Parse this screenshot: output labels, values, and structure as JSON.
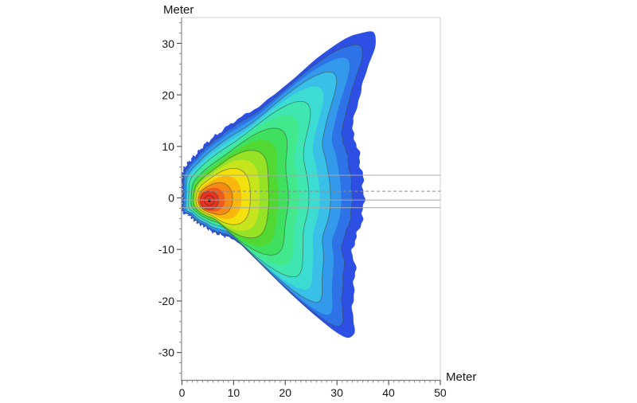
{
  "figure": {
    "background": "#ffffff",
    "description": "Filled rainbow contour map of a directional field (noise/level footprint) around a source point, fan/butterfly shaped, opening toward +x"
  },
  "axes": {
    "x": {
      "title": "Meter",
      "tick_labels": [
        "0",
        "10",
        "20",
        "30",
        "40",
        "50"
      ],
      "range": [
        0,
        50
      ],
      "major_step": 10,
      "minor_step": 1
    },
    "y": {
      "title": "Meter",
      "tick_labels": [
        "30",
        "20",
        "10",
        "0",
        "-10",
        "-20",
        "-30"
      ],
      "range": [
        -35,
        35
      ],
      "major_step": 10,
      "minor_step": 2
    }
  },
  "reference_lines": [
    {
      "y": 4.4,
      "style": "solid",
      "color": "#a8a8a8"
    },
    {
      "y": 1.3,
      "style": "dashed",
      "color": "#8c8c8c"
    },
    {
      "y": -0.4,
      "style": "solid",
      "color": "#a8a8a8"
    },
    {
      "y": -1.9,
      "style": "solid",
      "color": "#a8a8a8"
    }
  ],
  "chart_data": {
    "type": "heatmap",
    "subtype": "filled-contour",
    "title": "",
    "xlabel": "Meter",
    "ylabel": "Meter",
    "xlim": [
      0,
      50
    ],
    "ylim": [
      -35,
      35
    ],
    "grid": false,
    "legend": false,
    "x_major_ticks": [
      0,
      10,
      20,
      30,
      40,
      50
    ],
    "y_major_ticks": [
      -30,
      -20,
      -10,
      0,
      10,
      20,
      30
    ],
    "source_point": {
      "x": 5.3,
      "y": -0.5
    },
    "core_radius_m": 1.8,
    "core_ring_radius_m": 0.95,
    "upper_wing_tip": {
      "x": 38.2,
      "y": 33.0
    },
    "lower_wing_tip": {
      "x": 33.6,
      "y": -29.6
    },
    "max_right_extent_m": 35.2,
    "boundary_r_by_theta_deg": [
      [
        -180,
        5.3
      ],
      [
        -156,
        5.8
      ],
      [
        -144,
        4.8
      ],
      [
        -120,
        4.9
      ],
      [
        -98,
        5.2
      ],
      [
        -71,
        7.1
      ],
      [
        -58,
        8.6
      ],
      [
        -52,
        12.5
      ],
      [
        -49,
        22.0
      ],
      [
        -47,
        34.0
      ],
      [
        -45.8,
        40.6
      ],
      [
        -44.5,
        38.5
      ],
      [
        -42,
        37.7
      ],
      [
        -36,
        34.1
      ],
      [
        -29,
        32.1
      ],
      [
        -24,
        30.9
      ],
      [
        -19,
        29.0
      ],
      [
        -13,
        29.4
      ],
      [
        -7,
        29.8
      ],
      [
        3,
        29.9
      ],
      [
        15,
        30.1
      ],
      [
        21,
        30.6
      ],
      [
        27,
        30.6
      ],
      [
        29,
        32.0
      ],
      [
        35,
        35.2
      ],
      [
        39,
        38.9
      ],
      [
        42.7,
        43.2
      ],
      [
        45.5,
        47.0
      ],
      [
        47.3,
        45.2
      ],
      [
        50,
        41.4
      ],
      [
        52,
        36.7
      ],
      [
        54,
        32.0
      ],
      [
        56,
        27.1
      ],
      [
        61,
        21.1
      ],
      [
        69,
        17.3
      ],
      [
        80,
        13.6
      ],
      [
        90,
        11.6
      ],
      [
        104,
        9.5
      ],
      [
        116,
        8.6
      ],
      [
        134.5,
        7.6
      ],
      [
        145,
        6.5
      ],
      [
        160,
        5.6
      ],
      [
        180,
        5.3
      ]
    ],
    "contour_line_color": "rgba(60,70,50,0.55)",
    "levels": [
      {
        "t": 1.0,
        "color": "#2e4fe4",
        "line": false,
        "smooth": 1.5,
        "jitter": 0.22
      },
      {
        "t": 0.92,
        "color": "#2e72e8",
        "line": true,
        "smooth": 1.7,
        "jitter": 0.1
      },
      {
        "t": 0.845,
        "color": "#3399ea",
        "line": false,
        "smooth": 2.1,
        "jitter": 0
      },
      {
        "t": 0.771,
        "color": "#38c0e8",
        "line": true,
        "smooth": 2.8,
        "jitter": 0
      },
      {
        "t": 0.697,
        "color": "#3cdcd3",
        "line": false,
        "smooth": 3.7,
        "jitter": 0
      },
      {
        "t": 0.622,
        "color": "#3fe6b0",
        "line": true,
        "smooth": 4.9,
        "jitter": 0
      },
      {
        "t": 0.551,
        "color": "#41e98c",
        "line": false,
        "smooth": 6.3,
        "jitter": 0
      },
      {
        "t": 0.481,
        "color": "#3fe05e",
        "line": true,
        "smooth": 8.0,
        "jitter": 0
      },
      {
        "t": 0.413,
        "color": "#52d832",
        "line": false,
        "smooth": 9.8,
        "jitter": 0
      },
      {
        "t": 0.346,
        "color": "#95e226",
        "line": true,
        "smooth": 11.8,
        "jitter": 0
      },
      {
        "t": 0.28,
        "color": "#c6e51e",
        "line": false,
        "smooth": 14.0,
        "jitter": 0
      },
      {
        "t": 0.215,
        "color": "#f2e00f",
        "line": true,
        "smooth": 16.3,
        "jitter": 0
      },
      {
        "t": 0.152,
        "color": "#f9b60c",
        "line": false,
        "smooth": 18.7,
        "jitter": 0
      },
      {
        "t": 0.093,
        "color": "#f58a14",
        "line": true,
        "smooth": 21.3,
        "jitter": 0
      },
      {
        "t": 0.042,
        "color": "#ef5a1c",
        "line": false,
        "smooth": 23.5,
        "jitter": 0
      },
      {
        "t": 0.0,
        "color": "#e63323",
        "line": true,
        "smooth": 25.0,
        "jitter": 0
      }
    ]
  }
}
